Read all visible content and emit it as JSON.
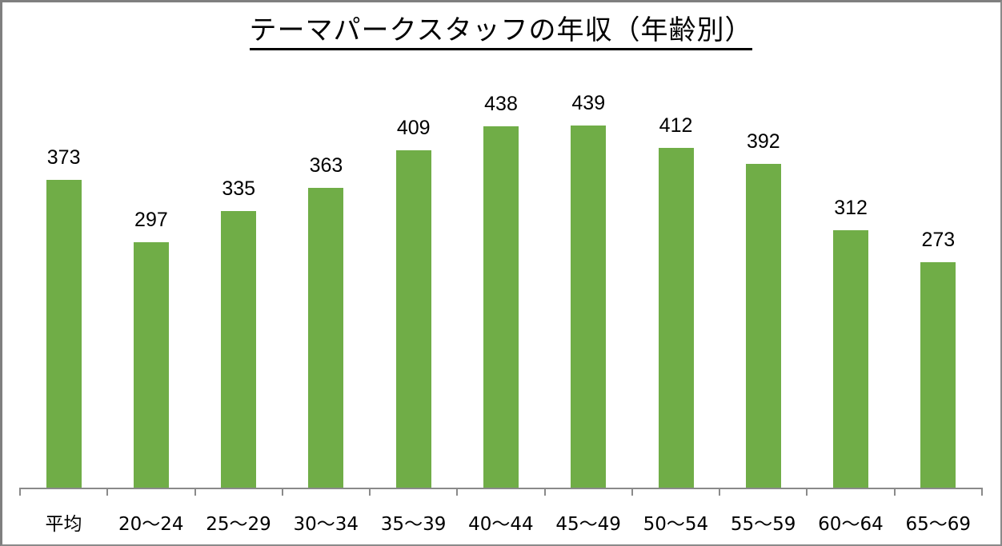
{
  "chart_data": {
    "type": "bar",
    "title": "テーマパークスタッフの年収（年齢別）",
    "categories": [
      "平均",
      "20～24",
      "25～29",
      "30～34",
      "35～39",
      "40～44",
      "45～49",
      "50～54",
      "55～59",
      "60～64",
      "65～69"
    ],
    "values": [
      373,
      297,
      335,
      363,
      409,
      438,
      439,
      412,
      392,
      312,
      273
    ],
    "xlabel": "",
    "ylabel": "",
    "ylim": [
      0,
      590
    ],
    "grid": false,
    "legend": null,
    "data_labels": true,
    "bar_color": "#70ad47"
  },
  "labels": {
    "title": "テーマパークスタッフの年収（年齢別）",
    "values": [
      "373",
      "297",
      "335",
      "363",
      "409",
      "438",
      "439",
      "412",
      "392",
      "312",
      "273"
    ],
    "categories": [
      "平均",
      "20～24",
      "25～29",
      "30～34",
      "35～39",
      "40～44",
      "45～49",
      "50～54",
      "55～59",
      "60～64",
      "65～69"
    ]
  }
}
